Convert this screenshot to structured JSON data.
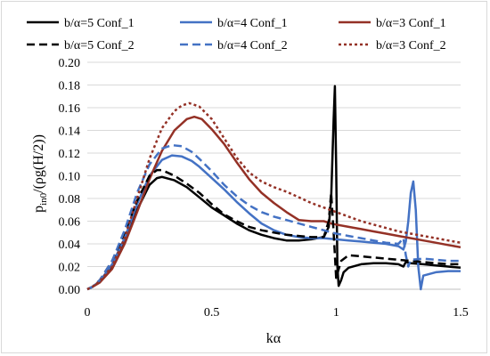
{
  "chart_data": {
    "type": "line",
    "title": "",
    "xlabel": "kα",
    "ylabel": "p",
    "ylabel_subscript": "in0",
    "ylabel_rest": "/(ρg(H/2))",
    "xlim": [
      0,
      1.5
    ],
    "ylim": [
      0,
      0.2
    ],
    "x_ticks": [
      0,
      0.5,
      1,
      1.5
    ],
    "x_tick_labels": [
      "0",
      "0.5",
      "1",
      "1.5"
    ],
    "y_ticks": [
      0,
      0.02,
      0.04,
      0.06,
      0.08,
      0.1,
      0.12,
      0.14,
      0.16,
      0.18,
      0.2
    ],
    "y_tick_labels": [
      "0.00",
      "0.02",
      "0.04",
      "0.06",
      "0.08",
      "0.10",
      "0.12",
      "0.14",
      "0.16",
      "0.18",
      "0.20"
    ],
    "grid": "horizontal",
    "legend_placement": "top",
    "series": [
      {
        "name": "b/α=5 Conf_1",
        "color": "#000000",
        "dash": "solid",
        "x": [
          0,
          0.02,
          0.05,
          0.1,
          0.15,
          0.2,
          0.25,
          0.28,
          0.3,
          0.35,
          0.4,
          0.45,
          0.5,
          0.55,
          0.6,
          0.65,
          0.7,
          0.75,
          0.8,
          0.85,
          0.9,
          0.95,
          0.97,
          0.98,
          0.99,
          0.995,
          1.0,
          1.005,
          1.01,
          1.02,
          1.03,
          1.05,
          1.1,
          1.15,
          1.2,
          1.25,
          1.27,
          1.28,
          1.3,
          1.35,
          1.4,
          1.45,
          1.5
        ],
        "y": [
          0,
          0.002,
          0.007,
          0.02,
          0.042,
          0.07,
          0.092,
          0.098,
          0.099,
          0.096,
          0.09,
          0.081,
          0.072,
          0.065,
          0.058,
          0.052,
          0.048,
          0.045,
          0.043,
          0.043,
          0.044,
          0.046,
          0.055,
          0.08,
          0.15,
          0.179,
          0.11,
          0.02,
          0.003,
          0.008,
          0.015,
          0.019,
          0.022,
          0.023,
          0.023,
          0.022,
          0.02,
          0.024,
          0.023,
          0.022,
          0.021,
          0.02,
          0.019
        ]
      },
      {
        "name": "b/α=4 Conf_1",
        "color": "#4472c4",
        "dash": "solid",
        "x": [
          0,
          0.02,
          0.05,
          0.1,
          0.15,
          0.2,
          0.25,
          0.3,
          0.34,
          0.38,
          0.42,
          0.45,
          0.5,
          0.55,
          0.6,
          0.65,
          0.7,
          0.75,
          0.8,
          0.85,
          0.9,
          0.95,
          1.0,
          1.05,
          1.1,
          1.15,
          1.2,
          1.25,
          1.27,
          1.28,
          1.29,
          1.3,
          1.31,
          1.32,
          1.33,
          1.34,
          1.35,
          1.4,
          1.45,
          1.5
        ],
        "y": [
          0,
          0.002,
          0.007,
          0.022,
          0.045,
          0.075,
          0.1,
          0.114,
          0.118,
          0.117,
          0.113,
          0.108,
          0.098,
          0.088,
          0.077,
          0.067,
          0.058,
          0.052,
          0.048,
          0.046,
          0.045,
          0.045,
          0.044,
          0.043,
          0.042,
          0.041,
          0.04,
          0.038,
          0.035,
          0.042,
          0.06,
          0.085,
          0.095,
          0.07,
          0.02,
          0.0,
          0.012,
          0.015,
          0.016,
          0.016
        ]
      },
      {
        "name": "b/α=3 Conf_1",
        "color": "#943126",
        "dash": "solid",
        "x": [
          0,
          0.02,
          0.05,
          0.1,
          0.15,
          0.2,
          0.25,
          0.3,
          0.35,
          0.4,
          0.43,
          0.46,
          0.5,
          0.55,
          0.6,
          0.65,
          0.7,
          0.75,
          0.8,
          0.85,
          0.9,
          0.95,
          0.98,
          1.0,
          1.05,
          1.1,
          1.15,
          1.2,
          1.25,
          1.3,
          1.35,
          1.4,
          1.45,
          1.5
        ],
        "y": [
          0,
          0.002,
          0.006,
          0.018,
          0.04,
          0.068,
          0.097,
          0.122,
          0.14,
          0.15,
          0.152,
          0.15,
          0.141,
          0.128,
          0.112,
          0.097,
          0.085,
          0.076,
          0.068,
          0.061,
          0.06,
          0.06,
          0.058,
          0.057,
          0.055,
          0.053,
          0.051,
          0.049,
          0.047,
          0.045,
          0.043,
          0.041,
          0.039,
          0.037
        ]
      },
      {
        "name": "b/α=5 Conf_2",
        "color": "#000000",
        "dash": "dash",
        "x": [
          0,
          0.02,
          0.05,
          0.1,
          0.15,
          0.2,
          0.25,
          0.28,
          0.3,
          0.35,
          0.4,
          0.45,
          0.5,
          0.55,
          0.6,
          0.65,
          0.7,
          0.75,
          0.8,
          0.85,
          0.9,
          0.95,
          0.97,
          0.98,
          0.99,
          1.0,
          1.02,
          1.05,
          1.1,
          1.15,
          1.2,
          1.25,
          1.3,
          1.35,
          1.4,
          1.45,
          1.5
        ],
        "y": [
          0,
          0.002,
          0.008,
          0.025,
          0.05,
          0.078,
          0.1,
          0.105,
          0.105,
          0.1,
          0.093,
          0.085,
          0.075,
          0.066,
          0.06,
          0.055,
          0.052,
          0.05,
          0.048,
          0.047,
          0.046,
          0.046,
          0.06,
          0.085,
          0.05,
          0.01,
          0.025,
          0.03,
          0.029,
          0.028,
          0.027,
          0.026,
          0.025,
          0.024,
          0.023,
          0.022,
          0.022
        ]
      },
      {
        "name": "b/α=4 Conf_2",
        "color": "#4472c4",
        "dash": "dash",
        "x": [
          0,
          0.02,
          0.05,
          0.1,
          0.15,
          0.2,
          0.25,
          0.3,
          0.34,
          0.38,
          0.42,
          0.45,
          0.5,
          0.55,
          0.6,
          0.65,
          0.7,
          0.75,
          0.8,
          0.85,
          0.9,
          0.95,
          1.0,
          1.05,
          1.1,
          1.15,
          1.2,
          1.25,
          1.27,
          1.28,
          1.29,
          1.3,
          1.35,
          1.4,
          1.45,
          1.5
        ],
        "y": [
          0,
          0.002,
          0.008,
          0.025,
          0.052,
          0.085,
          0.11,
          0.124,
          0.127,
          0.126,
          0.121,
          0.115,
          0.104,
          0.092,
          0.082,
          0.074,
          0.068,
          0.064,
          0.061,
          0.058,
          0.055,
          0.052,
          0.049,
          0.047,
          0.045,
          0.043,
          0.041,
          0.04,
          0.045,
          0.03,
          0.02,
          0.026,
          0.027,
          0.026,
          0.025,
          0.025
        ]
      },
      {
        "name": "b/α=3 Conf_2",
        "color": "#943126",
        "dash": "dot",
        "x": [
          0,
          0.02,
          0.05,
          0.1,
          0.15,
          0.2,
          0.25,
          0.3,
          0.35,
          0.38,
          0.41,
          0.45,
          0.5,
          0.55,
          0.6,
          0.65,
          0.7,
          0.75,
          0.8,
          0.85,
          0.9,
          0.95,
          1.0,
          1.05,
          1.1,
          1.15,
          1.2,
          1.25,
          1.3,
          1.35,
          1.4,
          1.45,
          1.5
        ],
        "y": [
          0,
          0.002,
          0.007,
          0.02,
          0.045,
          0.08,
          0.115,
          0.142,
          0.157,
          0.162,
          0.164,
          0.161,
          0.15,
          0.133,
          0.116,
          0.103,
          0.095,
          0.09,
          0.086,
          0.081,
          0.076,
          0.072,
          0.068,
          0.064,
          0.06,
          0.057,
          0.054,
          0.051,
          0.049,
          0.047,
          0.045,
          0.043,
          0.041
        ]
      }
    ]
  }
}
